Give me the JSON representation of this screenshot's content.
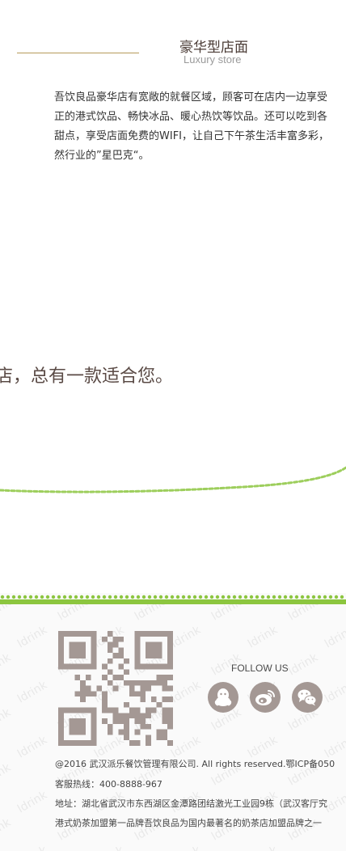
{
  "luxury": {
    "title": "豪华型店面",
    "subtitle": "Luxury store",
    "description_lines": [
      "吾饮良品豪华店有宽敞的就餐区域，顾客可在店内一边享受",
      "正的港式饮品、畅快冰品、暖心热饮等饮品。还可以吃到各",
      "甜点，享受店面免费的WIFI，让自己下午茶生活丰富多彩，",
      "然行业的”星巴克“。"
    ]
  },
  "slogan": "店，总有一款适合您。",
  "footer": {
    "watermark_text": "ldrink",
    "follow_label": "FOLLOW US",
    "social": [
      "qq-icon",
      "weibo-icon",
      "wechat-icon"
    ],
    "copyright": "@2016 武汉派乐餐饮管理有限公司. All rights reserved.鄂ICP备050",
    "hotline": "客服热线：400-8888-967",
    "address": "地址：湖北省武汉市东西湖区金潭路团结激光工业园9栋（武汉客厅究",
    "brand_line": "港式奶茶加盟第一品牌吾饮良品为国内最著名的奶茶店加盟品牌之一"
  },
  "colors": {
    "accent_green": "#8cc63f",
    "icon_gray": "#a49894",
    "gold_line": "#b69a5a"
  }
}
